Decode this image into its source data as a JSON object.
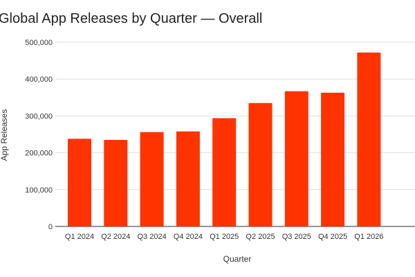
{
  "chart_data": {
    "type": "bar",
    "title": "Global App Releases by Quarter — Overall",
    "xlabel": "Quarter",
    "ylabel": "App Releases",
    "categories": [
      "Q1 2024",
      "Q2 2024",
      "Q3 2024",
      "Q4 2024",
      "Q1 2025",
      "Q2 2025",
      "Q3 2025",
      "Q4 2025",
      "Q1 2026"
    ],
    "values": [
      238000,
      235000,
      256000,
      258000,
      294000,
      335000,
      367000,
      363000,
      472000
    ],
    "ylim": [
      0,
      500000
    ],
    "yticks": [
      "0",
      "100,000",
      "200,000",
      "300,000",
      "400,000",
      "500,000"
    ],
    "grid": true,
    "bar_color": "#ff3300"
  }
}
